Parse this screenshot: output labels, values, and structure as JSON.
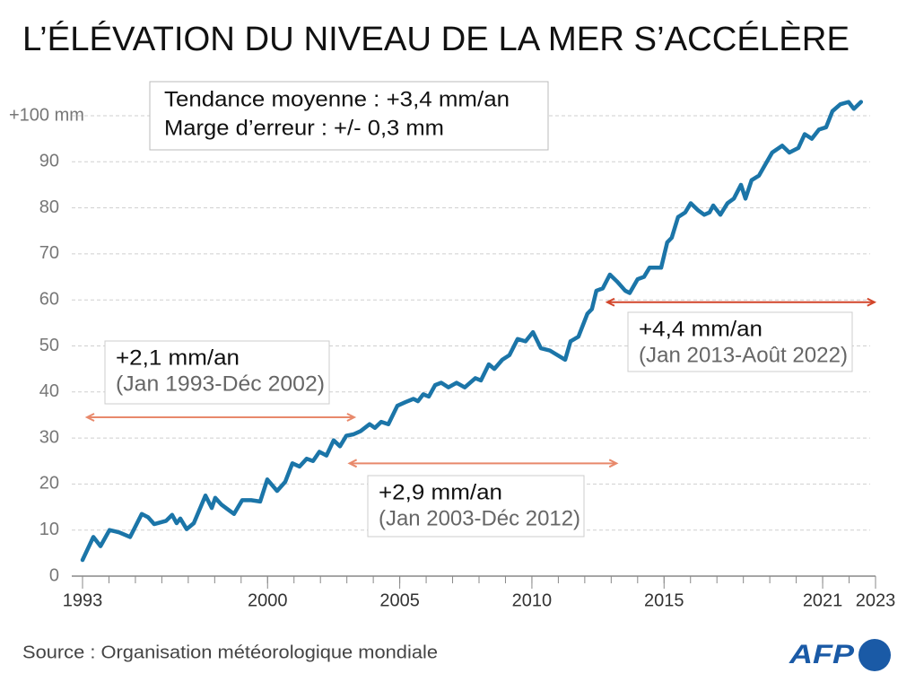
{
  "chart_data": {
    "type": "line",
    "title": "L’ÉLÉVATION DU NIVEAU DE LA MER S’ACCÉLÈRE",
    "source": "Source : Organisation météorologique mondiale",
    "logo": "AFP",
    "info_box": [
      "Tendance moyenne : +3,4 mm/an",
      "Marge d’erreur : +/- 0,3 mm"
    ],
    "xlim": [
      1993,
      2023
    ],
    "xticks": [
      1993,
      2000,
      2005,
      2010,
      2015,
      2021,
      2023
    ],
    "xminor_ticks": [
      1993,
      1994,
      1995,
      1996,
      1997,
      1998,
      1999,
      2000,
      2001,
      2002,
      2003,
      2004,
      2005,
      2006,
      2007,
      2008,
      2009,
      2010,
      2011,
      2012,
      2013,
      2014,
      2015,
      2016,
      2017,
      2018,
      2019,
      2020,
      2021,
      2022,
      2023
    ],
    "ylim": [
      0,
      100
    ],
    "yticks": [
      0,
      10,
      20,
      30,
      40,
      50,
      60,
      70,
      80,
      90,
      {
        "value": 100,
        "label": "+100 mm"
      }
    ],
    "grid": true,
    "series": [
      {
        "color": "#1b75a8",
        "x": [
          1993.0,
          1993.41,
          1993.68,
          1994.02,
          1994.39,
          1994.8,
          1995.24,
          1995.48,
          1995.71,
          1996.16,
          1996.39,
          1996.56,
          1996.7,
          1996.94,
          1997.21,
          1997.65,
          1997.89,
          1998.02,
          1998.26,
          1998.73,
          1999.04,
          1999.38,
          1999.72,
          1999.99,
          2000.36,
          2000.67,
          2000.94,
          2001.21,
          2001.48,
          2001.72,
          2001.96,
          2002.23,
          2002.5,
          2002.74,
          2002.98,
          2003.25,
          2003.52,
          2003.86,
          2004.06,
          2004.3,
          2004.57,
          2004.91,
          2005.22,
          2005.52,
          2005.69,
          2005.89,
          2006.1,
          2006.34,
          2006.57,
          2006.84,
          2007.15,
          2007.46,
          2007.86,
          2008.07,
          2008.37,
          2008.58,
          2008.88,
          2009.15,
          2009.46,
          2009.76,
          2010.04,
          2010.34,
          2010.68,
          2011.26,
          2011.46,
          2011.76,
          2012.1,
          2012.27,
          2012.44,
          2012.68,
          2012.95,
          2013.22,
          2013.53,
          2013.7,
          2014.0,
          2014.24,
          2014.45,
          2014.89,
          2015.12,
          2015.29,
          2015.53,
          2015.8,
          2016.01,
          2016.28,
          2016.52,
          2016.72,
          2016.86,
          2017.13,
          2017.4,
          2017.64,
          2017.91,
          2018.08,
          2018.31,
          2018.59,
          2018.79,
          2019.09,
          2019.47,
          2019.74,
          2020.08,
          2020.32,
          2020.59,
          2020.86,
          2021.13,
          2021.37,
          2021.67,
          2021.98,
          2022.18,
          2022.45
        ],
        "values": [
          3.5,
          8.5,
          6.5,
          10,
          9.5,
          8.5,
          13.5,
          12.8,
          11.3,
          12,
          13.3,
          11.5,
          12.5,
          10.2,
          11.5,
          17.5,
          14.8,
          17,
          15.5,
          13.5,
          16.5,
          16.5,
          16.2,
          21,
          18.5,
          20.5,
          24.5,
          23.8,
          25.5,
          25,
          27,
          26.2,
          29.5,
          28.2,
          30.5,
          30.8,
          31.5,
          33,
          32.2,
          33.5,
          33,
          37,
          37.8,
          38.5,
          38,
          39.5,
          39,
          41.5,
          42,
          41,
          42,
          41,
          43,
          42.5,
          46,
          45,
          47,
          48,
          51.5,
          51,
          53,
          49.5,
          49,
          47,
          51,
          52,
          57,
          58,
          62,
          62.5,
          65.5,
          64,
          62,
          61.5,
          64.5,
          65,
          67,
          67,
          72.5,
          73.5,
          78,
          79,
          81,
          79.5,
          78.5,
          79,
          80.5,
          78.5,
          81,
          82,
          85,
          82,
          86,
          87,
          89,
          92,
          93.5,
          92,
          93,
          96,
          95,
          97,
          97.5,
          101,
          102.5,
          103,
          101.5,
          103
        ]
      }
    ],
    "annotations": [
      {
        "text": "+2,1 mm/an",
        "period": "(Jan 1993-Déc 2002)",
        "x_start": 1993.17,
        "x_end": 2003.28,
        "y": 34.5,
        "color": "#e8896b"
      },
      {
        "text": "+2,9 mm/an",
        "period": "(Jan 2003-Déc 2012)",
        "x_start": 2003.1,
        "x_end": 2013.2,
        "y": 24.5,
        "color": "#e8896b"
      },
      {
        "text": "+4,4 mm/an",
        "period": "(Jan 2013-Août 2022)",
        "x_start": 2012.85,
        "x_end": 2022.96,
        "y": 59.5,
        "color": "#d2452a"
      }
    ]
  }
}
